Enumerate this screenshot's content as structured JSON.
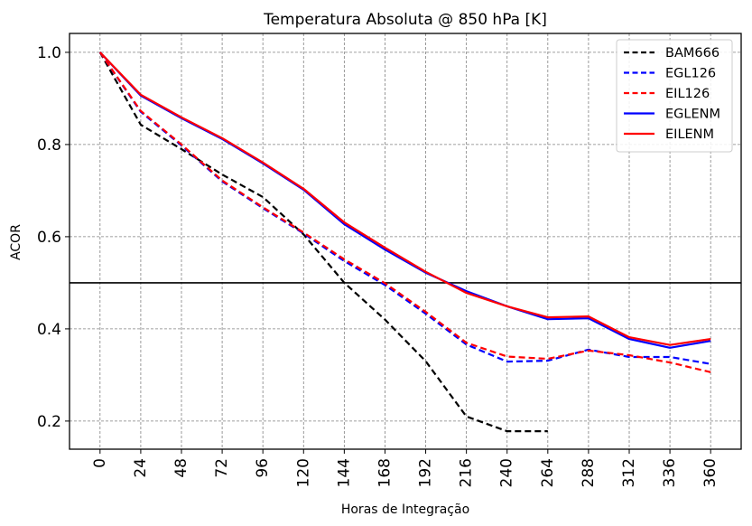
{
  "chart_data": {
    "type": "line",
    "title": "Temperatura Absoluta @ 850 hPa [K]",
    "xlabel": "Horas de Integração",
    "ylabel": "ACOR",
    "x": [
      0,
      24,
      48,
      72,
      96,
      120,
      144,
      168,
      192,
      216,
      240,
      264,
      288,
      312,
      336,
      360
    ],
    "xticks": [
      "0",
      "24",
      "48",
      "72",
      "96",
      "120",
      "144",
      "168",
      "192",
      "216",
      "240",
      "264",
      "288",
      "312",
      "336",
      "360"
    ],
    "yticks": [
      "0.2",
      "0.4",
      "0.6",
      "0.8",
      "1.0"
    ],
    "ytick_values": [
      0.2,
      0.4,
      0.6,
      0.8,
      1.0
    ],
    "xlim": [
      -18,
      378
    ],
    "ylim": [
      0.139,
      1.041
    ],
    "grid": true,
    "reference_line": 0.5,
    "legend_position": "top-right",
    "series": [
      {
        "name": "BAM666",
        "color": "#000000",
        "style": "dashed",
        "values": [
          1.0,
          0.843,
          0.79,
          0.735,
          0.686,
          0.605,
          0.5,
          0.42,
          0.33,
          0.21,
          0.178,
          0.178,
          null,
          null,
          null,
          null
        ]
      },
      {
        "name": "EGL126",
        "color": "#0000ff",
        "style": "dashed",
        "values": [
          1.0,
          0.871,
          0.798,
          0.72,
          0.662,
          0.607,
          0.547,
          0.495,
          0.433,
          0.366,
          0.329,
          0.331,
          0.355,
          0.339,
          0.339,
          0.324
        ]
      },
      {
        "name": "EIL126",
        "color": "#ff0000",
        "style": "dashed",
        "values": [
          1.0,
          0.873,
          0.8,
          0.722,
          0.664,
          0.609,
          0.551,
          0.499,
          0.437,
          0.37,
          0.34,
          0.335,
          0.353,
          0.343,
          0.327,
          0.306
        ]
      },
      {
        "name": "EGLENM",
        "color": "#0000ff",
        "style": "solid",
        "values": [
          1.0,
          0.906,
          0.857,
          0.812,
          0.759,
          0.702,
          0.627,
          0.572,
          0.522,
          0.482,
          0.449,
          0.421,
          0.423,
          0.378,
          0.359,
          0.374
        ]
      },
      {
        "name": "EILENM",
        "color": "#ff0000",
        "style": "solid",
        "values": [
          1.0,
          0.908,
          0.859,
          0.814,
          0.761,
          0.704,
          0.631,
          0.576,
          0.524,
          0.478,
          0.449,
          0.425,
          0.427,
          0.382,
          0.365,
          0.378
        ]
      }
    ]
  }
}
